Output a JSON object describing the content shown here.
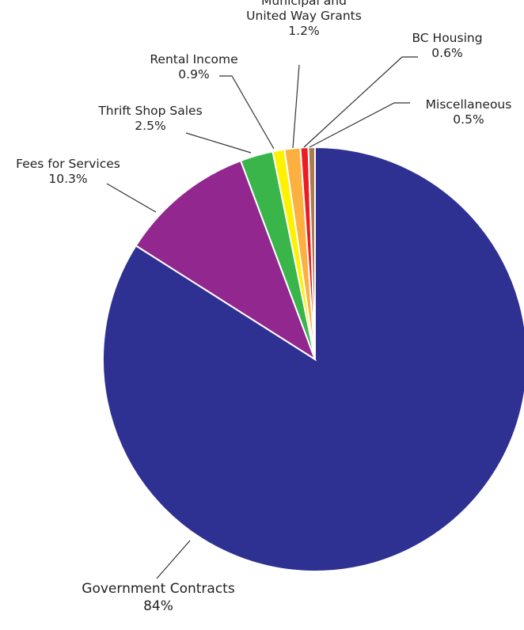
{
  "chart_data": {
    "type": "pie",
    "title": "",
    "start": "12 o'clock",
    "direction": "clockwise",
    "slices": [
      {
        "label": "Government Contracts",
        "pct_label": "84%",
        "value": 84,
        "color": "#2e3192"
      },
      {
        "label": "Fees for Services",
        "pct_label": "10.3%",
        "value": 10.3,
        "color": "#92278f"
      },
      {
        "label": "Thrift Shop Sales",
        "pct_label": "2.5%",
        "value": 2.5,
        "color": "#39b54a"
      },
      {
        "label": "Rental Income",
        "pct_label": "0.9%",
        "value": 0.9,
        "color": "#fff200"
      },
      {
        "label": "Municipal and United Way Grants",
        "label_lines": [
          "Municipal and",
          "United Way Grants"
        ],
        "pct_label": "1.2%",
        "value": 1.2,
        "color": "#fbb040"
      },
      {
        "label": "BC Housing",
        "pct_label": "0.6%",
        "value": 0.6,
        "color": "#ed1c24"
      },
      {
        "label": "Miscellaneous",
        "pct_label": "0.5%",
        "value": 0.5,
        "color": "#a97c50"
      }
    ]
  }
}
